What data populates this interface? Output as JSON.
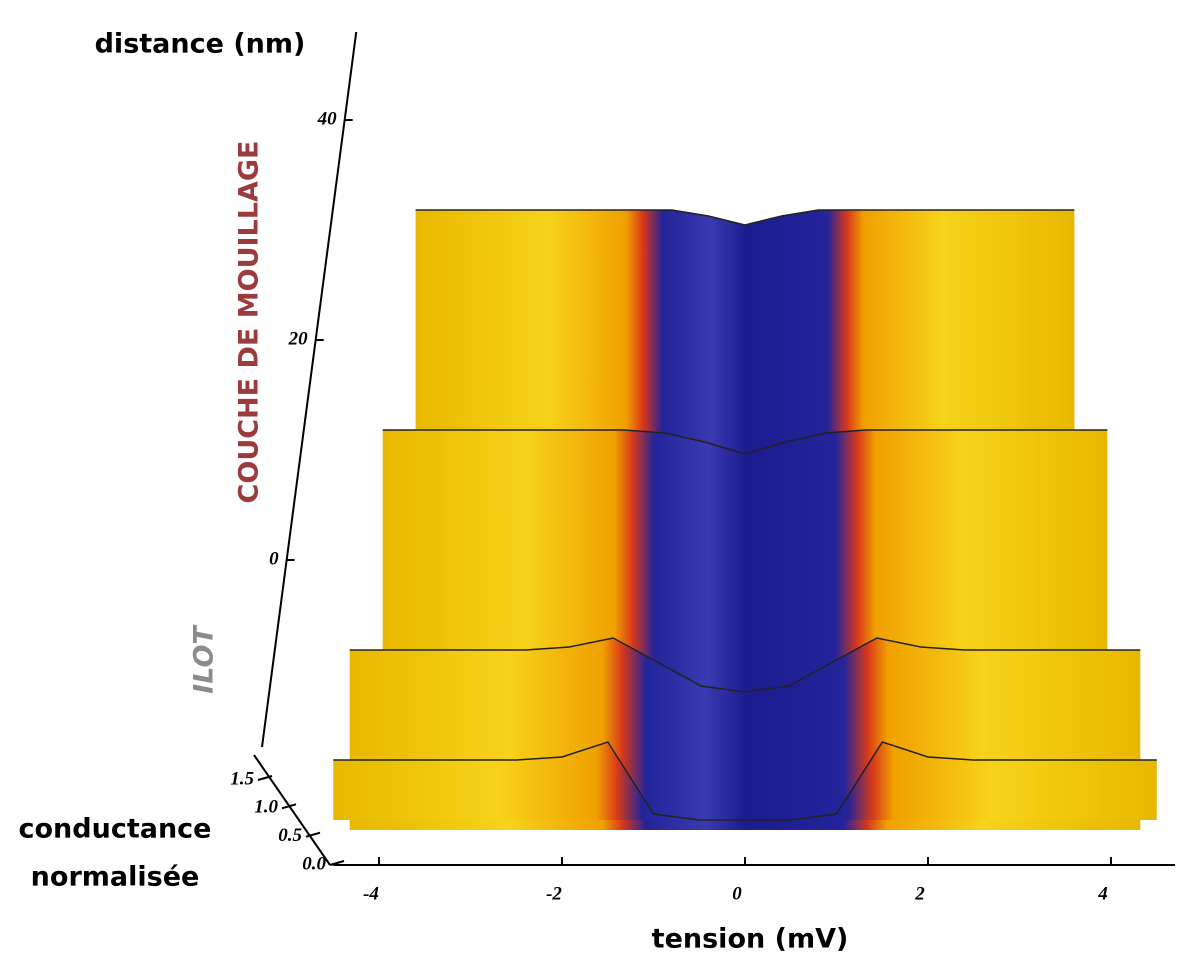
{
  "chart_data": {
    "type": "surface",
    "x_label": "tension (mV)",
    "y_label": "distance (nm)",
    "z_label_lines": [
      "conductance",
      "normalisée"
    ],
    "annotations": [
      "COUCHE DE MOUILLAGE",
      "ILOT"
    ],
    "x": [
      -4.5,
      -4,
      -3.5,
      -3,
      -2.5,
      -2,
      -1.5,
      -1,
      -0.5,
      0,
      0.5,
      1,
      1.5,
      2,
      2.5,
      3,
      3.5,
      4,
      4.5
    ],
    "xlim": [
      -4.5,
      4.7
    ],
    "xticks": [
      -4,
      -2,
      0,
      2,
      4
    ],
    "ylim": [
      -17,
      48
    ],
    "yticks": [
      0,
      20,
      40
    ],
    "zlim": [
      0,
      1.5
    ],
    "zticks": [
      {
        "value": 0,
        "label": "0.0"
      },
      {
        "value": 0.5,
        "label": "0.5"
      },
      {
        "value": 1,
        "label": "1.0"
      },
      {
        "value": 1.5,
        "label": "1.5"
      }
    ],
    "profiles": [
      {
        "distance": 40,
        "values": [
          1,
          1,
          1,
          1,
          1,
          1,
          1,
          1,
          0.9,
          0.75,
          0.9,
          1,
          1,
          1,
          1,
          1,
          1,
          1,
          1
        ]
      },
      {
        "distance": 20,
        "values": [
          1,
          1,
          1,
          1,
          1,
          1,
          1,
          0.95,
          0.8,
          0.6,
          0.8,
          0.95,
          1,
          1,
          1,
          1,
          1,
          1,
          1
        ]
      },
      {
        "distance": 0,
        "values": [
          1,
          1,
          1,
          1,
          1,
          1.05,
          1.2,
          0.8,
          0.4,
          0.3,
          0.4,
          0.8,
          1.2,
          1.05,
          1,
          1,
          1,
          1,
          1
        ]
      },
      {
        "distance": -10,
        "values": [
          1,
          1,
          1,
          1,
          1,
          1.05,
          1.3,
          0.1,
          0,
          0,
          0,
          0.1,
          1.3,
          1.05,
          1,
          1,
          1,
          1,
          1
        ]
      }
    ]
  }
}
